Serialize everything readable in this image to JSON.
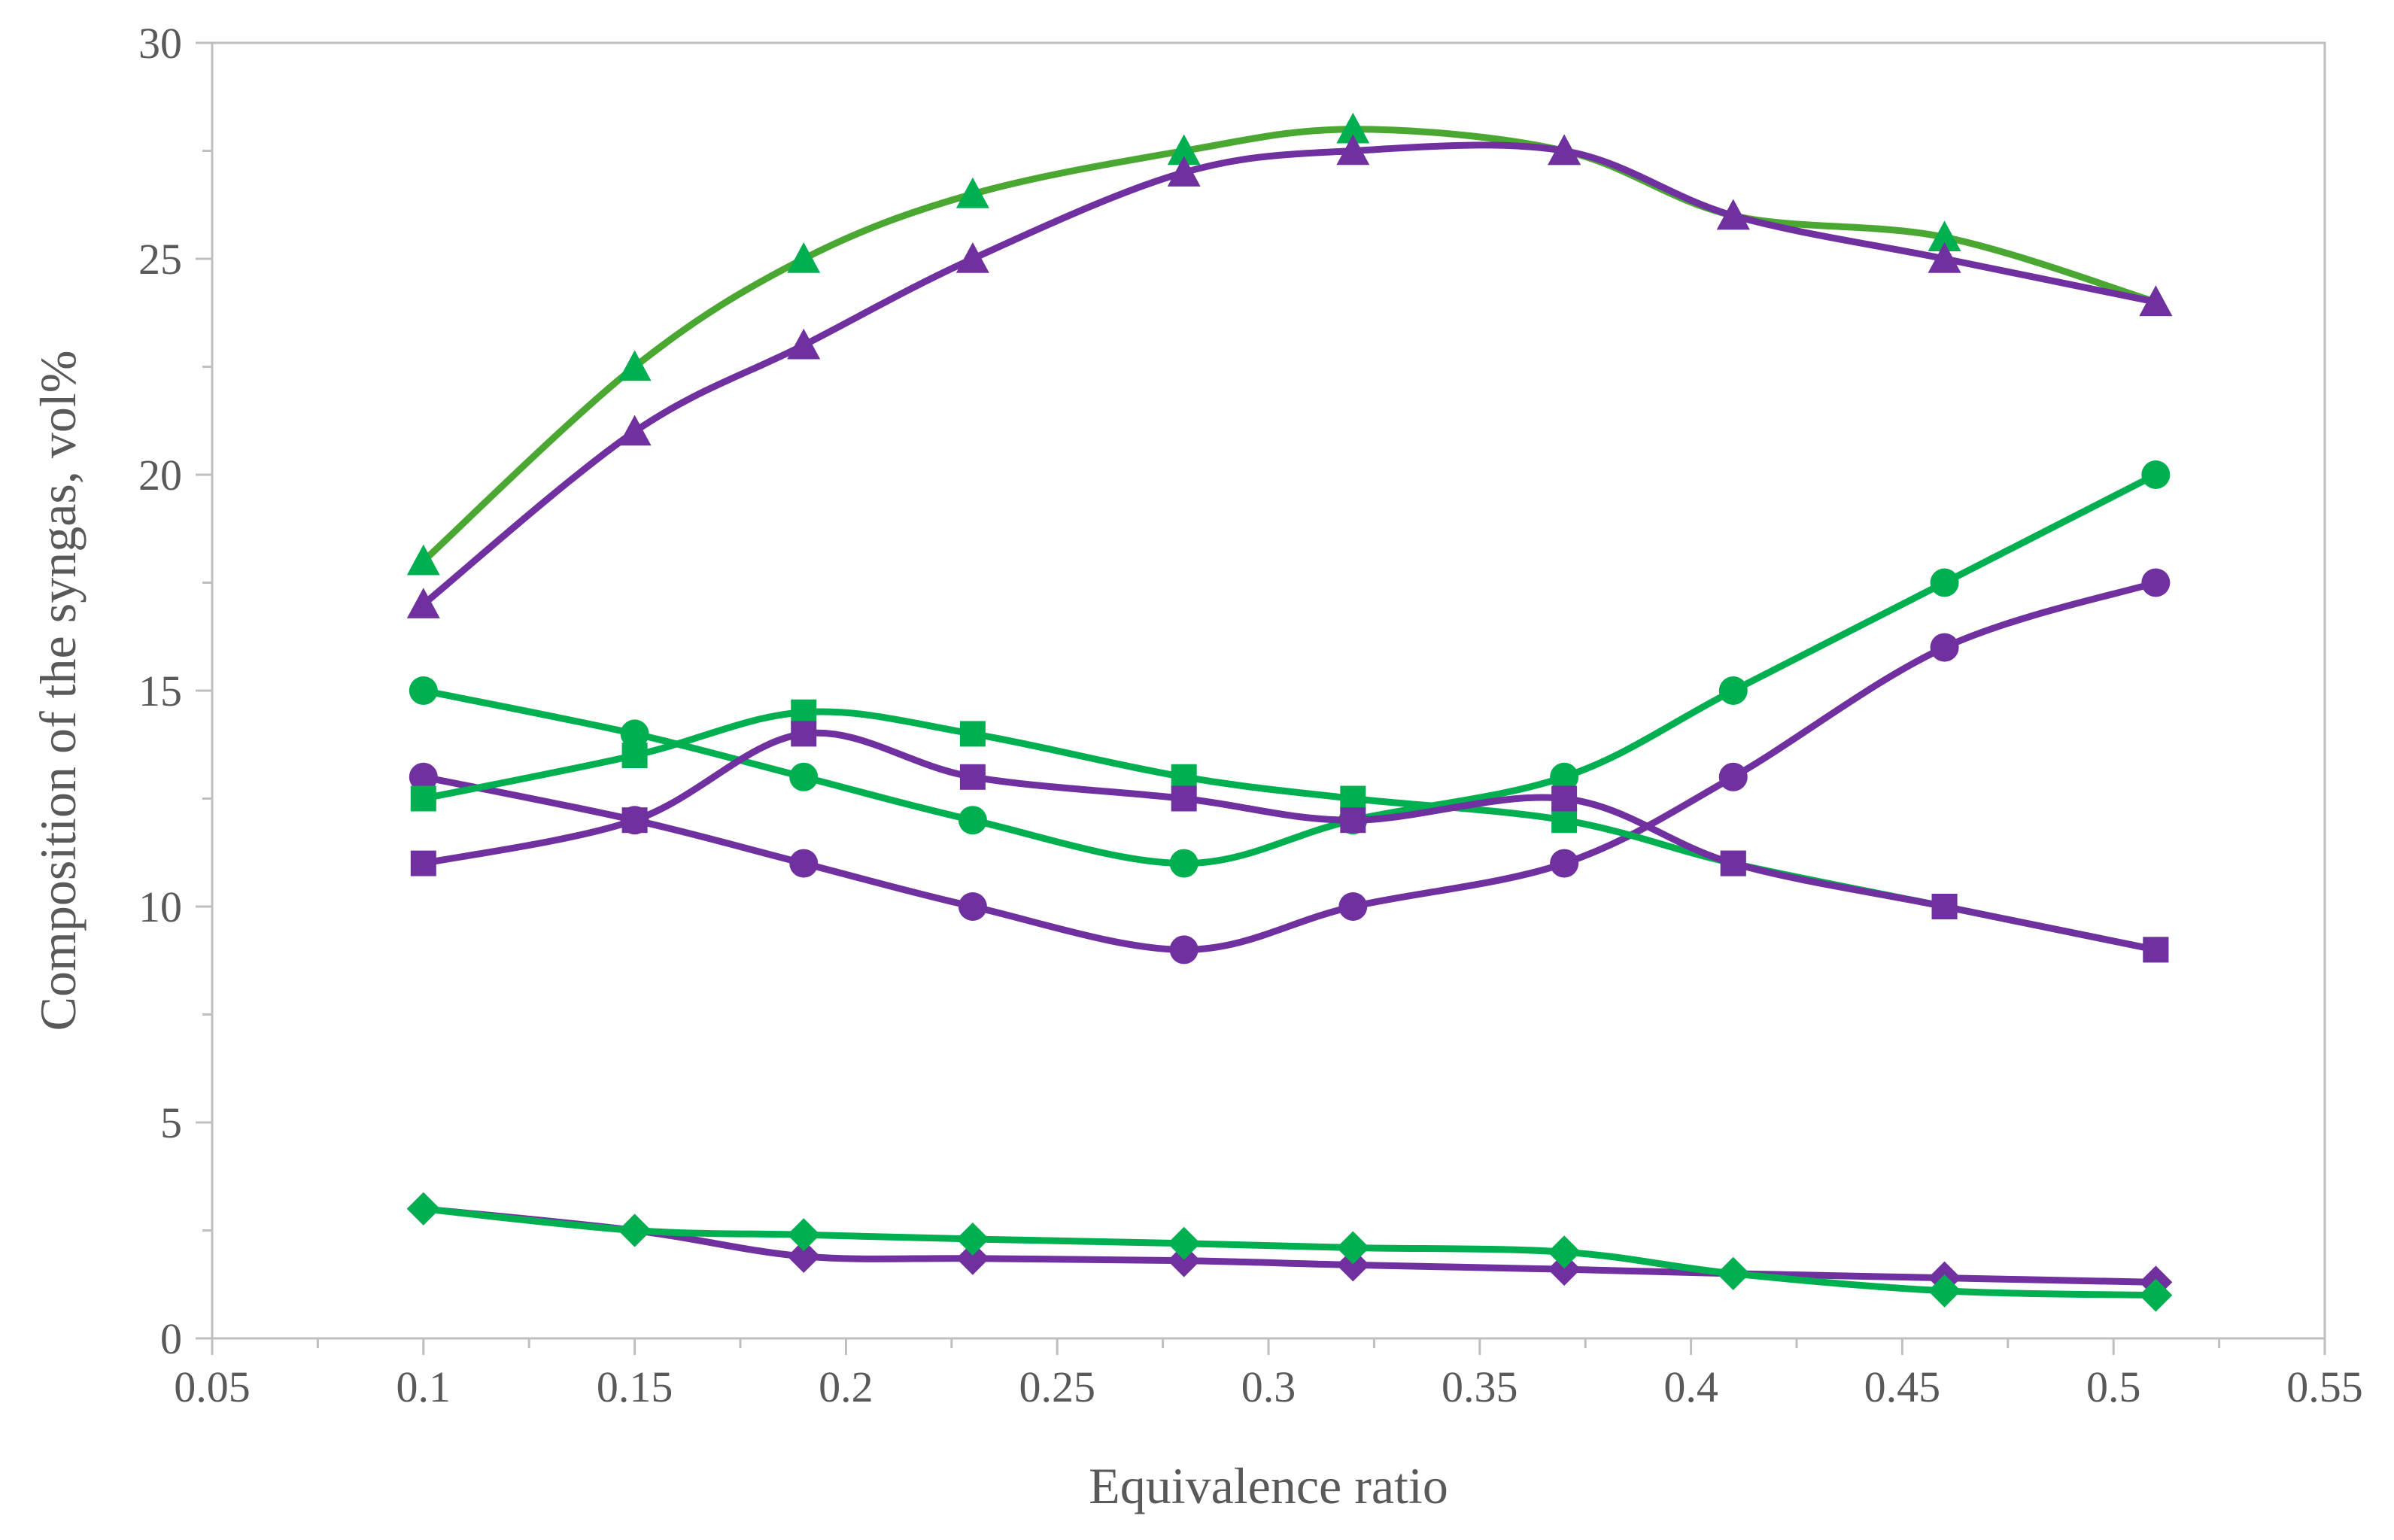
{
  "chart_data": {
    "type": "line",
    "xlabel": "Equivalence ratio",
    "ylabel": "Composition of the syngas, vol%",
    "xlim": [
      0.05,
      0.55
    ],
    "ylim": [
      0,
      30
    ],
    "x_ticks": [
      "0.05",
      "0.1",
      "0.15",
      "0.2",
      "0.25",
      "0.3",
      "0.35",
      "0.4",
      "0.45",
      "0.5",
      "0.55"
    ],
    "y_ticks": [
      "0",
      "5",
      "10",
      "15",
      "20",
      "25",
      "30"
    ],
    "grid": false,
    "legend": "none",
    "x": [
      0.1,
      0.15,
      0.19,
      0.23,
      0.28,
      0.32,
      0.37,
      0.41,
      0.46,
      0.51
    ],
    "series": [
      {
        "marker": "triangle",
        "color": "#00b050",
        "line_color": "#4aa832",
        "values": [
          18,
          22.5,
          25,
          26.5,
          27.5,
          28,
          27.5,
          26,
          25.5,
          24
        ]
      },
      {
        "marker": "triangle",
        "color": "#7030a0",
        "values": [
          17,
          21,
          23,
          25,
          27,
          27.5,
          27.5,
          26,
          25,
          24
        ]
      },
      {
        "marker": "circle",
        "color": "#00b050",
        "values": [
          15,
          14,
          13,
          12,
          11,
          12,
          13,
          15,
          17.5,
          20
        ]
      },
      {
        "marker": "circle",
        "color": "#7030a0",
        "values": [
          13,
          12,
          11,
          10,
          9,
          10,
          11,
          13,
          16,
          17.5
        ]
      },
      {
        "marker": "square",
        "color": "#00b050",
        "values": [
          12.5,
          13.5,
          14.5,
          14,
          13,
          12.5,
          12,
          11,
          10,
          9
        ]
      },
      {
        "marker": "square",
        "color": "#7030a0",
        "values": [
          11,
          12,
          14,
          13,
          12.5,
          12,
          12.5,
          11,
          10,
          9
        ]
      },
      {
        "marker": "diamond",
        "color": "#7030a0",
        "values": [
          3,
          2.5,
          1.9,
          1.85,
          1.8,
          1.7,
          1.6,
          1.5,
          1.4,
          1.3
        ]
      },
      {
        "marker": "diamond",
        "color": "#00b050",
        "values": [
          3,
          2.5,
          2.4,
          2.3,
          2.2,
          2.1,
          2.0,
          1.5,
          1.1,
          1.0
        ]
      }
    ]
  }
}
